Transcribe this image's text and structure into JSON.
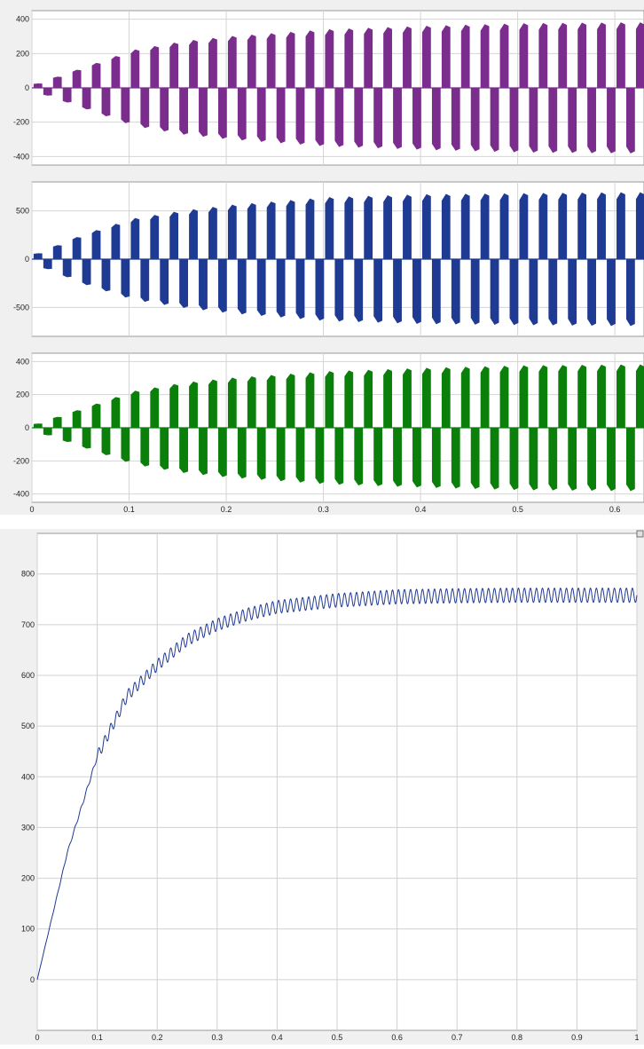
{
  "chart_data": [
    {
      "type": "line",
      "title": "",
      "xlabel": "",
      "ylabel": "",
      "xlim": [
        0,
        0.63
      ],
      "ylim": [
        -450,
        450
      ],
      "grid": true,
      "color": "#7b2d8e",
      "description_of_values": "switched waveform, envelope amplitude over time",
      "series": [
        {
          "x": [
            0,
            0.05,
            0.1,
            0.15,
            0.2,
            0.3,
            0.4,
            0.5,
            0.6,
            0.63
          ],
          "envelope": [
            20,
            120,
            220,
            270,
            300,
            340,
            360,
            375,
            380,
            380
          ]
        }
      ],
      "pulse_period": 0.02,
      "x_ticks": [
        "0",
        "0.1",
        "0.2",
        "0.3",
        "0.4",
        "0.5",
        "0.6"
      ],
      "y_ticks": [
        "400",
        "200",
        "0",
        "-200",
        "-400"
      ]
    },
    {
      "type": "line",
      "title": "",
      "xlabel": "",
      "ylabel": "",
      "xlim": [
        0,
        0.63
      ],
      "ylim": [
        -800,
        800
      ],
      "grid": true,
      "color": "#1f3a93",
      "series": [
        {
          "x": [
            0,
            0.05,
            0.1,
            0.15,
            0.2,
            0.3,
            0.4,
            0.5,
            0.6,
            0.63
          ],
          "envelope": [
            50,
            260,
            420,
            500,
            560,
            640,
            670,
            680,
            690,
            690
          ]
        }
      ],
      "pulse_period": 0.02,
      "y_ticks": [
        "500",
        "0",
        "-500"
      ]
    },
    {
      "type": "line",
      "title": "",
      "xlabel": "",
      "ylabel": "",
      "xlim": [
        0,
        0.63
      ],
      "ylim": [
        -450,
        450
      ],
      "grid": true,
      "color": "#0a7f0a",
      "series": [
        {
          "x": [
            0,
            0.05,
            0.1,
            0.15,
            0.2,
            0.3,
            0.4,
            0.5,
            0.6,
            0.63
          ],
          "envelope": [
            20,
            120,
            220,
            270,
            300,
            340,
            360,
            375,
            380,
            380
          ]
        }
      ],
      "pulse_period": 0.02,
      "x_ticks": [
        "0",
        "0.1",
        "0.2",
        "0.3",
        "0.4",
        "0.5",
        "0.6"
      ],
      "y_ticks": [
        "400",
        "200",
        "0",
        "-200",
        "-400"
      ]
    },
    {
      "type": "line",
      "title": "",
      "xlabel": "",
      "ylabel": "",
      "xlim": [
        0,
        1
      ],
      "ylim": [
        -100,
        880
      ],
      "grid": true,
      "color": "#1f3a93",
      "series": [
        {
          "x": [
            0,
            0.05,
            0.1,
            0.15,
            0.2,
            0.25,
            0.3,
            0.35,
            0.4,
            0.5,
            0.6,
            0.7,
            0.8,
            0.9,
            1.0
          ],
          "y": [
            0,
            250,
            440,
            560,
            620,
            670,
            700,
            720,
            735,
            748,
            755,
            757,
            758,
            758,
            758
          ]
        }
      ],
      "ripple_period": 0.01,
      "x_ticks": [
        "0",
        "0.1",
        "0.2",
        "0.3",
        "0.4",
        "0.5",
        "0.6",
        "0.7",
        "0.8",
        "0.9",
        "1"
      ],
      "y_ticks": [
        "800",
        "700",
        "600",
        "500",
        "400",
        "300",
        "200",
        "100",
        "0"
      ]
    }
  ]
}
